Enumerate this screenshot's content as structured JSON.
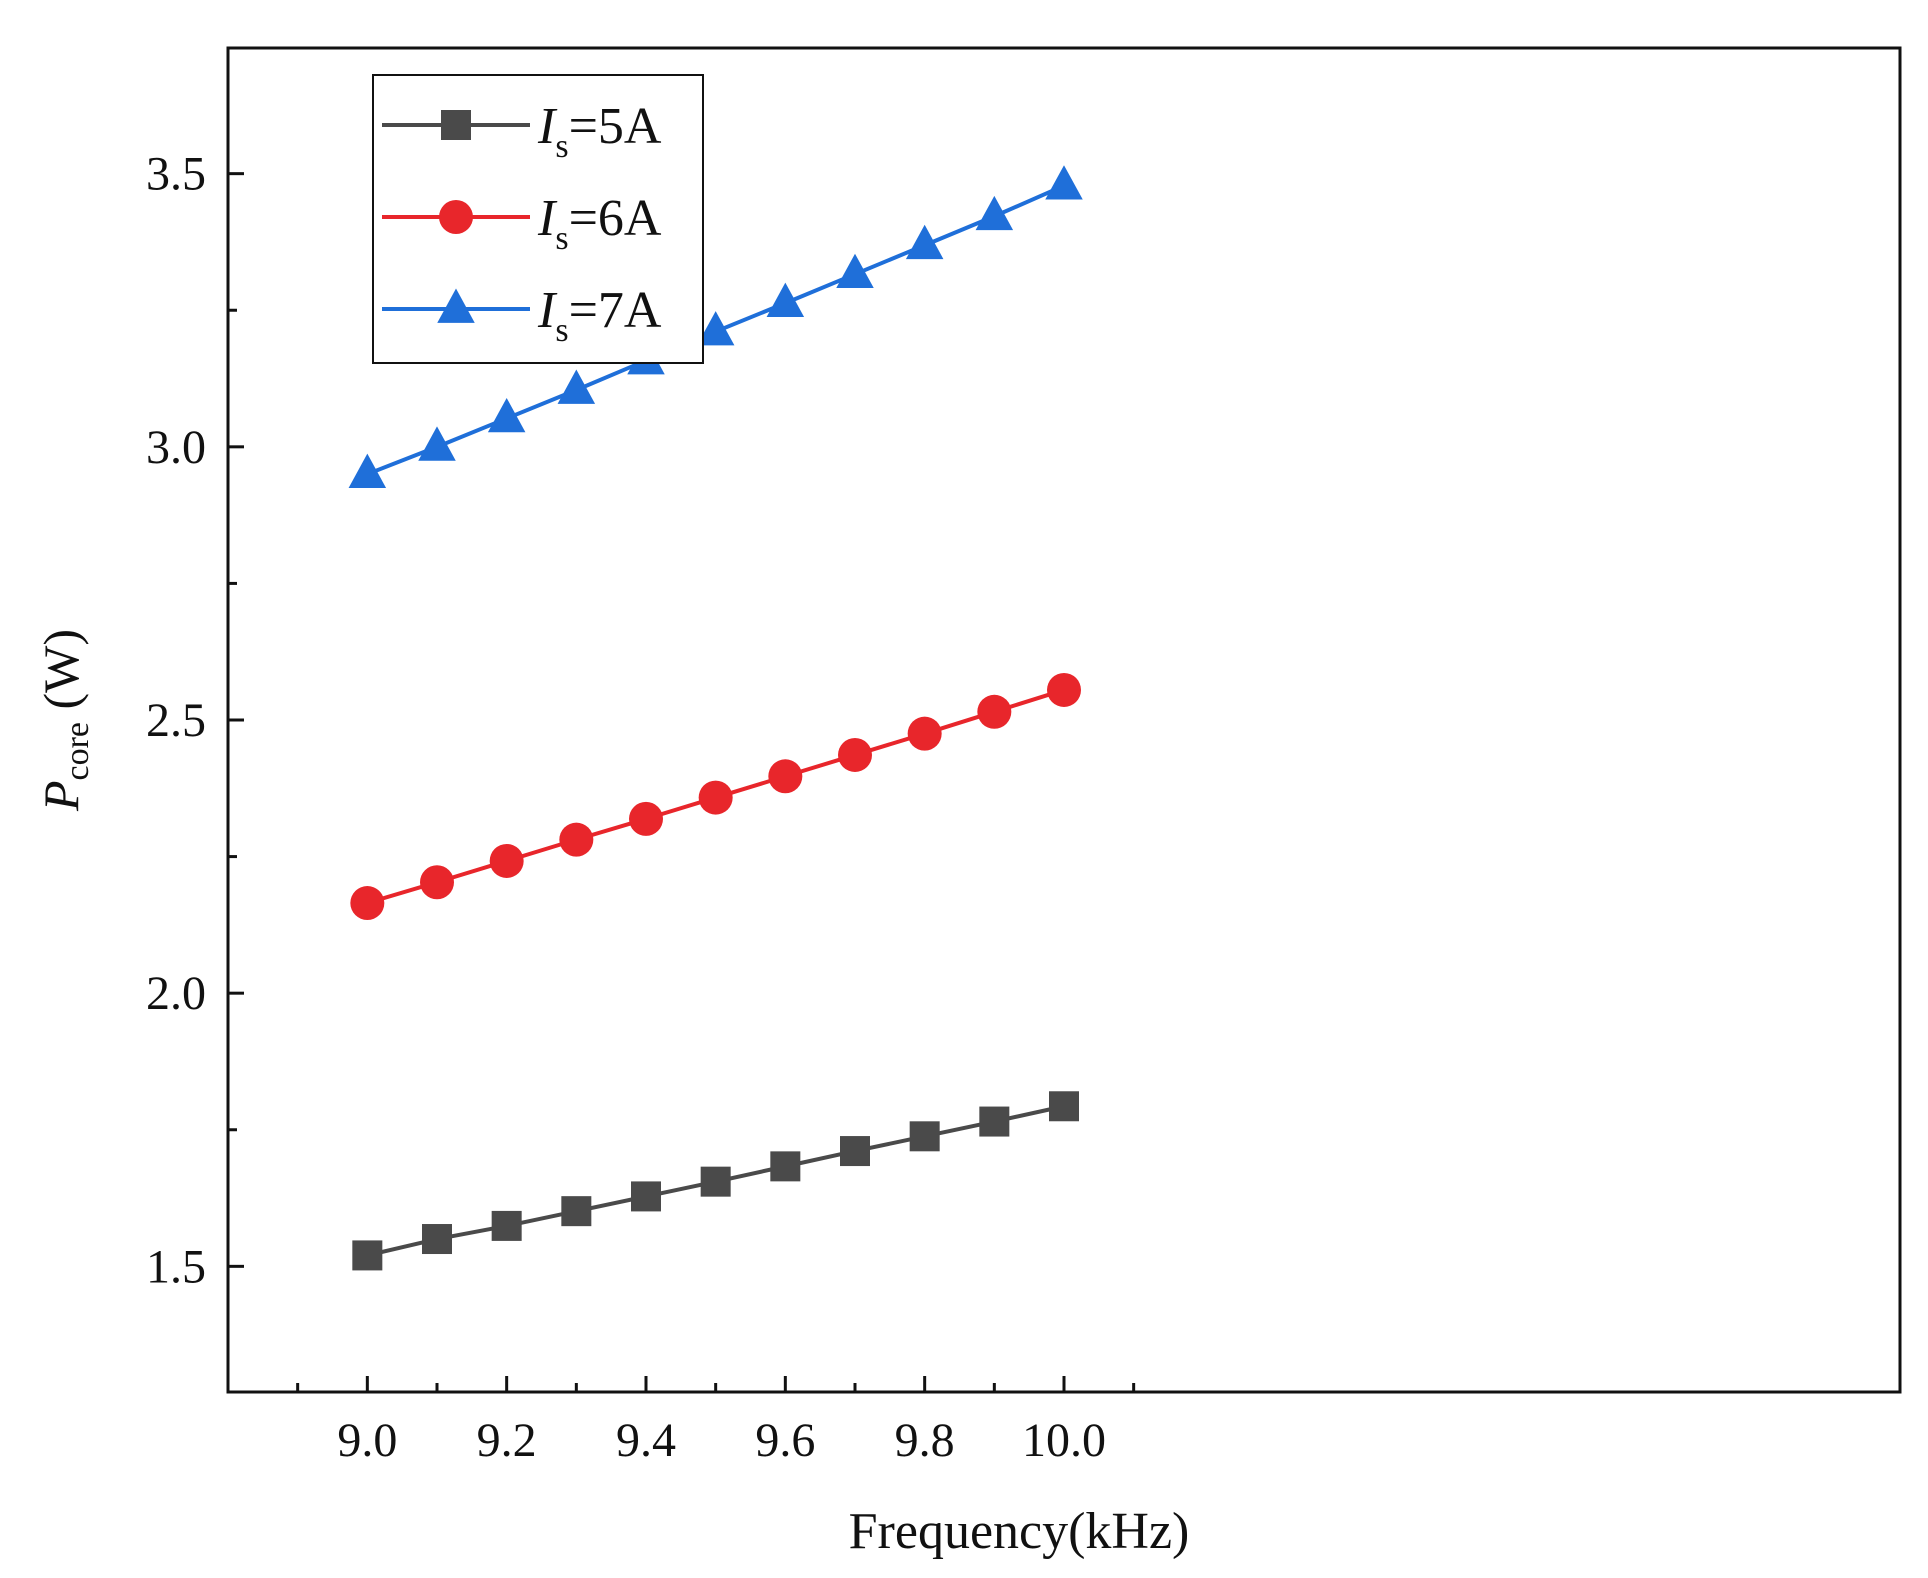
{
  "chart_data": {
    "type": "line",
    "title": "",
    "xlabel": "Frequency(kHz)",
    "ylabel": {
      "symbol": "P",
      "subscript": "core",
      "unit": " (W)"
    },
    "xlim": [
      8.8,
      11.2
    ],
    "ylim": [
      1.27,
      3.73
    ],
    "x_ticks": [
      9.0,
      9.2,
      9.4,
      9.6,
      9.8,
      10.0
    ],
    "x_tick_labels": [
      "9.0",
      "9.2",
      "9.4",
      "9.6",
      "9.8",
      "10.0"
    ],
    "y_ticks": [
      1.5,
      2.0,
      2.5,
      3.0,
      3.5
    ],
    "y_tick_labels": [
      "1.5",
      "2.0",
      "2.5",
      "3.0",
      "3.5"
    ],
    "grid": false,
    "legend_position": "top-left",
    "x": [
      9.0,
      9.1,
      9.2,
      9.3,
      9.4,
      9.5,
      9.6,
      9.7,
      9.8,
      9.9,
      10.0
    ],
    "series": [
      {
        "name": "Is=5A",
        "label_symbol": "I",
        "label_subscript": "s",
        "label_value": "=5A",
        "color": "#4a4a4a",
        "marker": "square",
        "values": [
          1.52,
          1.55,
          1.574,
          1.601,
          1.628,
          1.655,
          1.683,
          1.711,
          1.738,
          1.765,
          1.793
        ]
      },
      {
        "name": "Is=6A",
        "label_symbol": "I",
        "label_subscript": "s",
        "label_value": "=6A",
        "color": "#e8262b",
        "marker": "circle",
        "values": [
          2.165,
          2.203,
          2.242,
          2.281,
          2.319,
          2.358,
          2.397,
          2.436,
          2.475,
          2.515,
          2.555
        ]
      },
      {
        "name": "Is=7A",
        "label_symbol": "I",
        "label_subscript": "s",
        "label_value": "=7A",
        "color": "#1f6fd9",
        "marker": "triangle",
        "values": [
          2.95,
          3.0,
          3.052,
          3.104,
          3.158,
          3.211,
          3.263,
          3.316,
          3.369,
          3.422,
          3.478
        ]
      }
    ]
  }
}
